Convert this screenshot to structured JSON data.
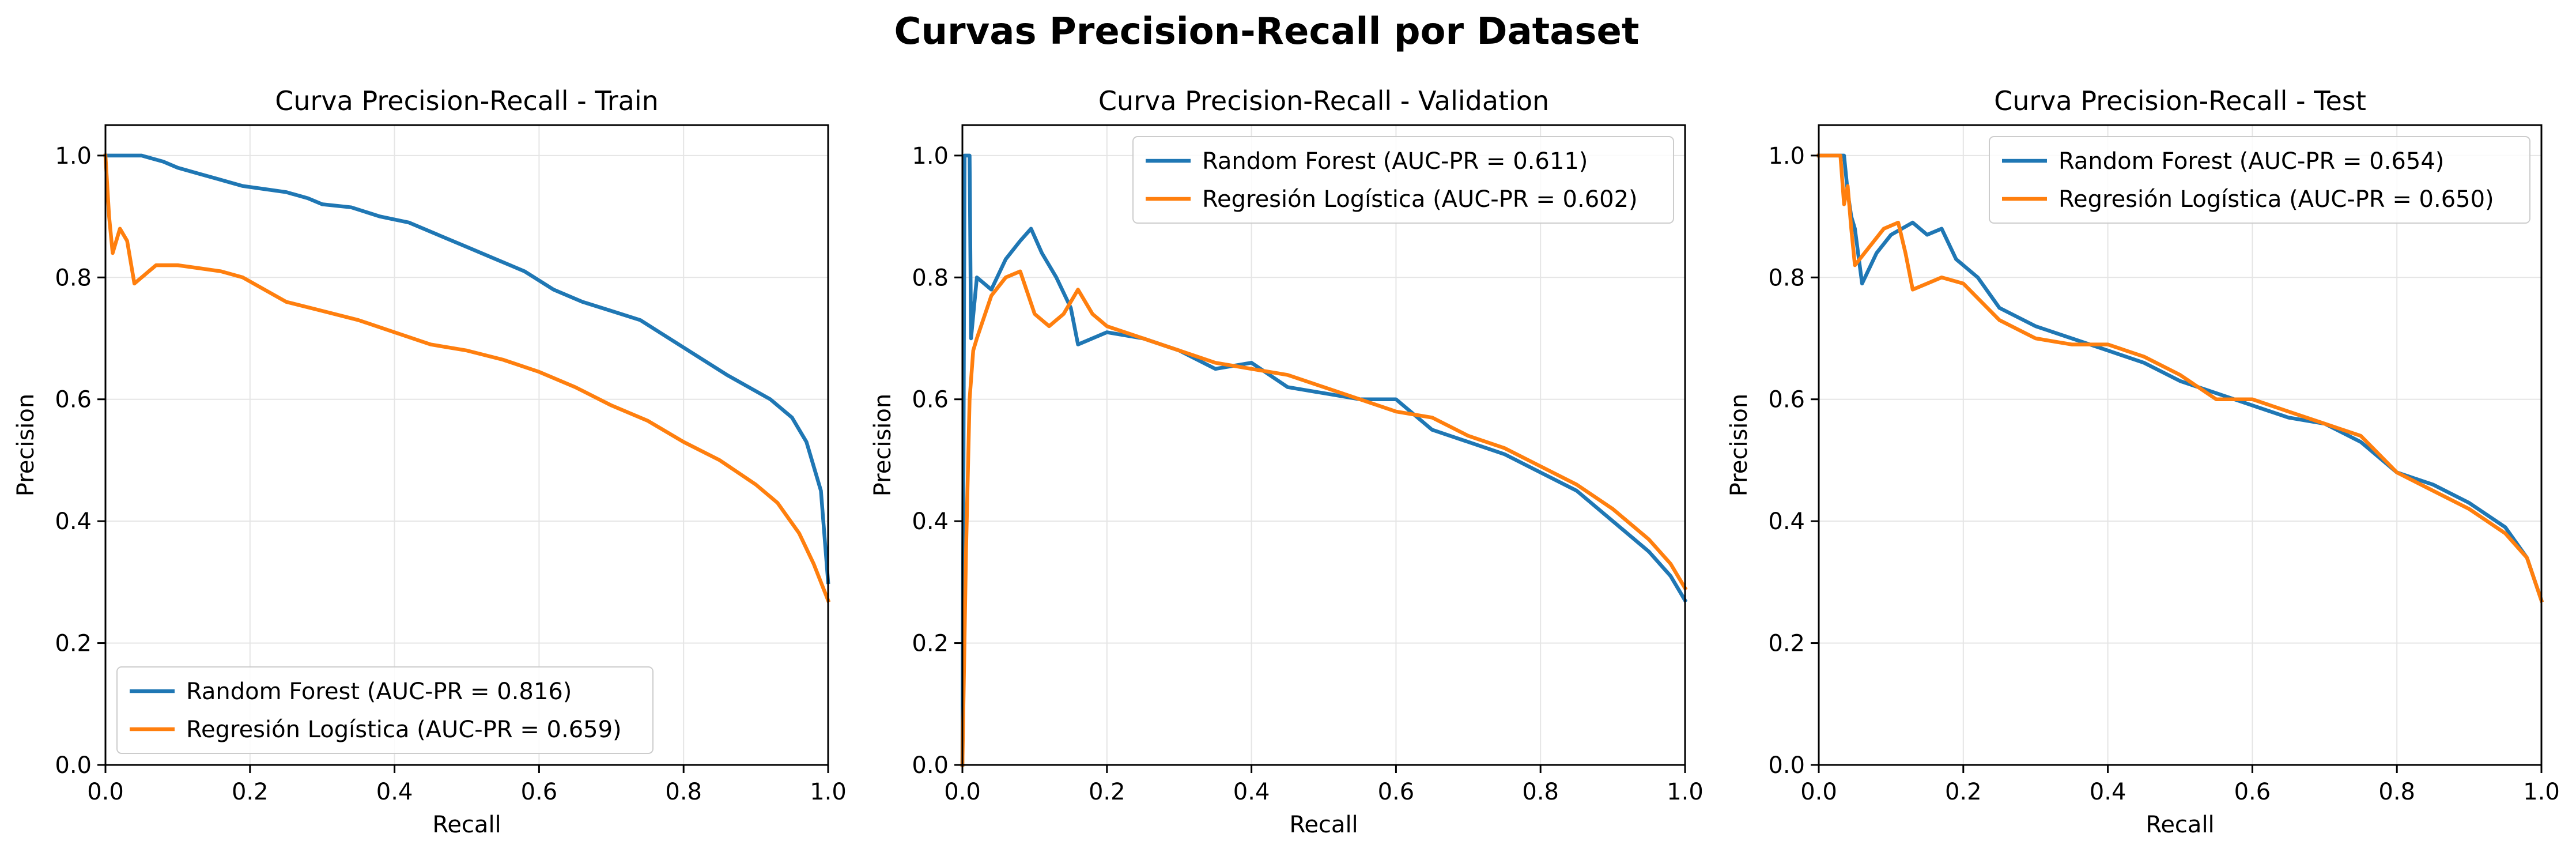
{
  "figure": {
    "suptitle": "Curvas Precision-Recall por Dataset"
  },
  "colors": {
    "random_forest": "#1f77b4",
    "logistic_regression": "#ff7f0e",
    "grid": "#e5e5e5"
  },
  "chart_data": [
    {
      "type": "line",
      "title": "Curva Precision-Recall - Train",
      "xlabel": "Recall",
      "ylabel": "Precision",
      "xlim": [
        0,
        1
      ],
      "ylim": [
        0,
        1.05
      ],
      "xticks": [
        "0.0",
        "0.2",
        "0.4",
        "0.6",
        "0.8",
        "1.0"
      ],
      "yticks": [
        "0.0",
        "0.2",
        "0.4",
        "0.6",
        "0.8",
        "1.0"
      ],
      "grid": true,
      "legend_position": "lower-left",
      "series": [
        {
          "name": "Random Forest (AUC-PR = 0.816)",
          "color": "#1f77b4",
          "x": [
            0.0,
            0.02,
            0.05,
            0.08,
            0.1,
            0.13,
            0.16,
            0.19,
            0.22,
            0.25,
            0.28,
            0.3,
            0.34,
            0.38,
            0.42,
            0.46,
            0.5,
            0.54,
            0.58,
            0.62,
            0.66,
            0.7,
            0.74,
            0.78,
            0.82,
            0.86,
            0.89,
            0.92,
            0.95,
            0.97,
            0.99,
            1.0
          ],
          "y": [
            1.0,
            1.0,
            1.0,
            0.99,
            0.98,
            0.97,
            0.96,
            0.95,
            0.945,
            0.94,
            0.93,
            0.92,
            0.915,
            0.9,
            0.89,
            0.87,
            0.85,
            0.83,
            0.81,
            0.78,
            0.76,
            0.745,
            0.73,
            0.7,
            0.67,
            0.64,
            0.62,
            0.6,
            0.57,
            0.53,
            0.45,
            0.3
          ]
        },
        {
          "name": "Regresión Logística (AUC-PR = 0.659)",
          "color": "#ff7f0e",
          "x": [
            0.0,
            0.005,
            0.01,
            0.02,
            0.03,
            0.04,
            0.05,
            0.07,
            0.1,
            0.13,
            0.16,
            0.19,
            0.22,
            0.25,
            0.3,
            0.35,
            0.4,
            0.45,
            0.5,
            0.55,
            0.6,
            0.65,
            0.7,
            0.75,
            0.8,
            0.85,
            0.9,
            0.93,
            0.96,
            0.98,
            1.0
          ],
          "y": [
            1.0,
            0.9,
            0.84,
            0.88,
            0.86,
            0.79,
            0.8,
            0.82,
            0.82,
            0.815,
            0.81,
            0.8,
            0.78,
            0.76,
            0.745,
            0.73,
            0.71,
            0.69,
            0.68,
            0.665,
            0.645,
            0.62,
            0.59,
            0.565,
            0.53,
            0.5,
            0.46,
            0.43,
            0.38,
            0.33,
            0.27
          ]
        }
      ]
    },
    {
      "type": "line",
      "title": "Curva Precision-Recall - Validation",
      "xlabel": "Recall",
      "ylabel": "Precision",
      "xlim": [
        0,
        1
      ],
      "ylim": [
        0,
        1.05
      ],
      "xticks": [
        "0.0",
        "0.2",
        "0.4",
        "0.6",
        "0.8",
        "1.0"
      ],
      "yticks": [
        "0.0",
        "0.2",
        "0.4",
        "0.6",
        "0.8",
        "1.0"
      ],
      "grid": true,
      "legend_position": "upper-right",
      "series": [
        {
          "name": "Random Forest (AUC-PR = 0.611)",
          "color": "#1f77b4",
          "x": [
            0.0,
            0.003,
            0.006,
            0.01,
            0.012,
            0.02,
            0.04,
            0.06,
            0.08,
            0.095,
            0.11,
            0.13,
            0.15,
            0.16,
            0.18,
            0.2,
            0.25,
            0.3,
            0.35,
            0.4,
            0.45,
            0.5,
            0.55,
            0.6,
            0.65,
            0.7,
            0.75,
            0.8,
            0.85,
            0.9,
            0.95,
            0.98,
            1.0
          ],
          "y": [
            0.0,
            1.0,
            1.0,
            1.0,
            0.7,
            0.8,
            0.78,
            0.83,
            0.86,
            0.88,
            0.84,
            0.8,
            0.75,
            0.69,
            0.7,
            0.71,
            0.7,
            0.68,
            0.65,
            0.66,
            0.62,
            0.61,
            0.6,
            0.6,
            0.55,
            0.53,
            0.51,
            0.48,
            0.45,
            0.4,
            0.35,
            0.31,
            0.27
          ]
        },
        {
          "name": "Regresión Logística (AUC-PR = 0.602)",
          "color": "#ff7f0e",
          "x": [
            0.0,
            0.005,
            0.01,
            0.015,
            0.02,
            0.04,
            0.06,
            0.08,
            0.1,
            0.12,
            0.14,
            0.16,
            0.18,
            0.2,
            0.25,
            0.3,
            0.35,
            0.4,
            0.45,
            0.5,
            0.55,
            0.6,
            0.65,
            0.7,
            0.75,
            0.8,
            0.85,
            0.9,
            0.95,
            0.98,
            1.0
          ],
          "y": [
            0.0,
            0.35,
            0.6,
            0.68,
            0.7,
            0.77,
            0.8,
            0.81,
            0.74,
            0.72,
            0.74,
            0.78,
            0.74,
            0.72,
            0.7,
            0.68,
            0.66,
            0.65,
            0.64,
            0.62,
            0.6,
            0.58,
            0.57,
            0.54,
            0.52,
            0.49,
            0.46,
            0.42,
            0.37,
            0.33,
            0.29
          ]
        }
      ]
    },
    {
      "type": "line",
      "title": "Curva Precision-Recall - Test",
      "xlabel": "Recall",
      "ylabel": "Precision",
      "xlim": [
        0,
        1
      ],
      "ylim": [
        0,
        1.05
      ],
      "xticks": [
        "0.0",
        "0.2",
        "0.4",
        "0.6",
        "0.8",
        "1.0"
      ],
      "yticks": [
        "0.0",
        "0.2",
        "0.4",
        "0.6",
        "0.8",
        "1.0"
      ],
      "grid": true,
      "legend_position": "upper-right",
      "series": [
        {
          "name": "Random Forest (AUC-PR = 0.654)",
          "color": "#1f77b4",
          "x": [
            0.0,
            0.02,
            0.035,
            0.04,
            0.045,
            0.05,
            0.06,
            0.08,
            0.1,
            0.13,
            0.15,
            0.17,
            0.19,
            0.22,
            0.25,
            0.3,
            0.35,
            0.4,
            0.45,
            0.5,
            0.55,
            0.6,
            0.65,
            0.7,
            0.75,
            0.8,
            0.85,
            0.9,
            0.95,
            0.98,
            1.0
          ],
          "y": [
            1.0,
            1.0,
            1.0,
            0.94,
            0.9,
            0.88,
            0.79,
            0.84,
            0.87,
            0.89,
            0.87,
            0.88,
            0.83,
            0.8,
            0.75,
            0.72,
            0.7,
            0.68,
            0.66,
            0.63,
            0.61,
            0.59,
            0.57,
            0.56,
            0.53,
            0.48,
            0.46,
            0.43,
            0.39,
            0.34,
            0.27
          ]
        },
        {
          "name": "Regresión Logística (AUC-PR = 0.650)",
          "color": "#ff7f0e",
          "x": [
            0.0,
            0.02,
            0.03,
            0.035,
            0.04,
            0.045,
            0.05,
            0.07,
            0.09,
            0.11,
            0.12,
            0.13,
            0.15,
            0.17,
            0.2,
            0.25,
            0.3,
            0.35,
            0.4,
            0.45,
            0.5,
            0.55,
            0.6,
            0.65,
            0.7,
            0.75,
            0.8,
            0.85,
            0.9,
            0.95,
            0.98,
            1.0
          ],
          "y": [
            1.0,
            1.0,
            1.0,
            0.92,
            0.95,
            0.88,
            0.82,
            0.85,
            0.88,
            0.89,
            0.84,
            0.78,
            0.79,
            0.8,
            0.79,
            0.73,
            0.7,
            0.69,
            0.69,
            0.67,
            0.64,
            0.6,
            0.6,
            0.58,
            0.56,
            0.54,
            0.48,
            0.45,
            0.42,
            0.38,
            0.34,
            0.27
          ]
        }
      ]
    }
  ]
}
